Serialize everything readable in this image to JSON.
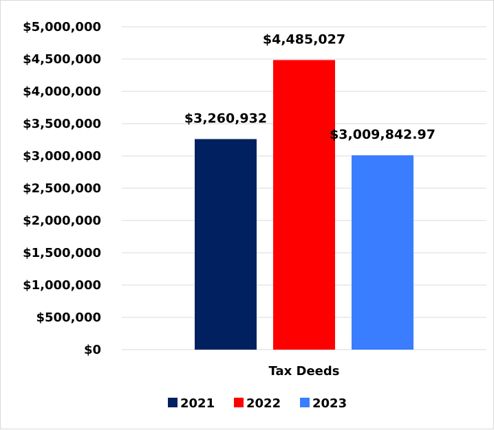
{
  "chart_data": {
    "type": "bar",
    "categories": [
      "Tax Deeds"
    ],
    "series": [
      {
        "name": "2021",
        "values": [
          3260932
        ],
        "label": "$3,260,932",
        "color": "#002060"
      },
      {
        "name": "2022",
        "values": [
          4485027
        ],
        "label": "$4,485,027",
        "color": "#ff0000"
      },
      {
        "name": "2023",
        "values": [
          3009842.97
        ],
        "label": "$3,009,842.97",
        "color": "#3a7dff"
      }
    ],
    "ylim": [
      0,
      5000000
    ],
    "y_ticks": [
      0,
      500000,
      1000000,
      1500000,
      2000000,
      2500000,
      3000000,
      3500000,
      4000000,
      4500000,
      5000000
    ],
    "y_tick_labels": [
      "$0",
      "$500,000",
      "$1,000,000",
      "$1,500,000",
      "$2,000,000",
      "$2,500,000",
      "$3,000,000",
      "$3,500,000",
      "$4,000,000",
      "$4,500,000",
      "$5,000,000"
    ],
    "grid": true,
    "legend_position": "bottom",
    "title": "",
    "xlabel": "",
    "ylabel": ""
  }
}
